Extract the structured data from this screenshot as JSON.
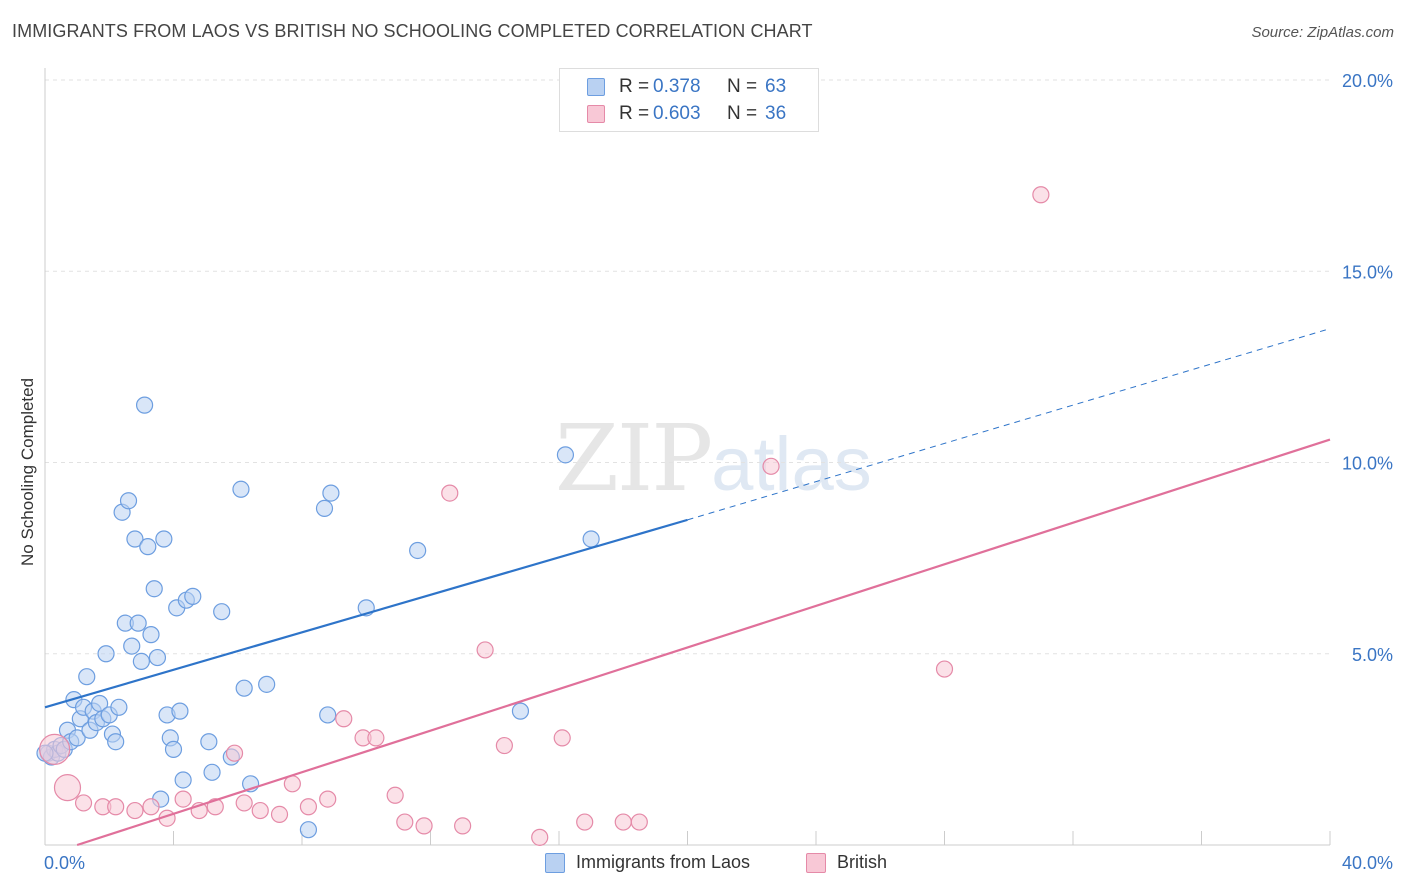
{
  "title": "IMMIGRANTS FROM LAOS VS BRITISH NO SCHOOLING COMPLETED CORRELATION CHART",
  "source": "Source: ZipAtlas.com",
  "watermark": {
    "zip": "ZIP",
    "atlas": "atlas"
  },
  "legend_top": {
    "rows": [
      {
        "r_label": "R =",
        "r_value": "0.378",
        "n_label": "N =",
        "n_value": "63"
      },
      {
        "r_label": "R =",
        "r_value": "0.603",
        "n_label": "N =",
        "n_value": "36"
      }
    ]
  },
  "legend_bottom": [
    "Immigrants from Laos",
    "British"
  ],
  "colors": {
    "laos_fill": "#b9d1f2",
    "laos_stroke": "#6d9ee0",
    "laos_line": "#2e74c9",
    "british_fill": "#f8c8d6",
    "british_stroke": "#e58aa8",
    "british_line": "#e0709a",
    "grid": "#e2e2e2",
    "tick_text": "#3a75c4"
  },
  "chart_data": {
    "type": "scatter",
    "title": "IMMIGRANTS FROM LAOS VS BRITISH NO SCHOOLING COMPLETED CORRELATION CHART",
    "xlabel": "",
    "ylabel": "No Schooling Completed",
    "xlim": [
      0,
      40
    ],
    "ylim": [
      0,
      20
    ],
    "x_tick_labels": [
      "0.0%",
      "40.0%"
    ],
    "y_ticks": [
      5,
      10,
      15,
      20
    ],
    "y_tick_labels": [
      "5.0%",
      "10.0%",
      "15.0%",
      "20.0%"
    ],
    "grid": true,
    "legend_placement": "top-center",
    "series": [
      {
        "name": "Immigrants from Laos",
        "r": 0.378,
        "n": 63,
        "trend": {
          "x0": 0,
          "y0": 3.6,
          "x1": 20,
          "y1": 8.5,
          "dashed_to_x": 40,
          "dashed_to_y": 13.5
        },
        "points": [
          [
            0.1,
            2.4
          ],
          [
            0.2,
            2.3
          ],
          [
            0.3,
            2.5
          ],
          [
            0.4,
            2.4
          ],
          [
            0.5,
            2.6
          ],
          [
            0.6,
            2.5
          ],
          [
            0.7,
            3.0
          ],
          [
            0.8,
            2.7
          ],
          [
            0.9,
            3.8
          ],
          [
            1.0,
            2.8
          ],
          [
            1.1,
            3.3
          ],
          [
            1.2,
            3.6
          ],
          [
            1.3,
            4.4
          ],
          [
            1.4,
            3.0
          ],
          [
            1.5,
            3.5
          ],
          [
            1.6,
            3.2
          ],
          [
            1.7,
            3.7
          ],
          [
            1.8,
            3.3
          ],
          [
            1.9,
            5.0
          ],
          [
            2.0,
            3.4
          ],
          [
            2.1,
            2.9
          ],
          [
            2.2,
            2.7
          ],
          [
            2.3,
            3.6
          ],
          [
            2.4,
            8.7
          ],
          [
            2.5,
            5.8
          ],
          [
            2.6,
            9.0
          ],
          [
            2.7,
            5.2
          ],
          [
            2.8,
            8.0
          ],
          [
            2.9,
            5.8
          ],
          [
            3.0,
            4.8
          ],
          [
            3.1,
            11.5
          ],
          [
            3.2,
            7.8
          ],
          [
            3.3,
            5.5
          ],
          [
            3.4,
            6.7
          ],
          [
            3.5,
            4.9
          ],
          [
            3.6,
            1.2
          ],
          [
            3.7,
            8.0
          ],
          [
            3.8,
            3.4
          ],
          [
            3.9,
            2.8
          ],
          [
            4.0,
            2.5
          ],
          [
            4.1,
            6.2
          ],
          [
            4.2,
            3.5
          ],
          [
            4.3,
            1.7
          ],
          [
            4.4,
            6.4
          ],
          [
            4.6,
            6.5
          ],
          [
            5.1,
            2.7
          ],
          [
            5.2,
            1.9
          ],
          [
            5.5,
            6.1
          ],
          [
            5.8,
            2.3
          ],
          [
            6.1,
            9.3
          ],
          [
            6.2,
            4.1
          ],
          [
            6.4,
            1.6
          ],
          [
            6.9,
            4.2
          ],
          [
            8.2,
            0.4
          ],
          [
            8.7,
            8.8
          ],
          [
            8.8,
            3.4
          ],
          [
            8.9,
            9.2
          ],
          [
            10.0,
            6.2
          ],
          [
            11.6,
            7.7
          ],
          [
            14.8,
            3.5
          ],
          [
            16.2,
            10.2
          ],
          [
            17.0,
            8.0
          ],
          [
            0.0,
            2.4
          ]
        ]
      },
      {
        "name": "British",
        "r": 0.603,
        "n": 36,
        "trend": {
          "x0": 1.0,
          "y0": 0.0,
          "x1": 40,
          "y1": 10.6
        },
        "points": [
          [
            0.3,
            2.5
          ],
          [
            0.7,
            1.5
          ],
          [
            1.2,
            1.1
          ],
          [
            1.8,
            1.0
          ],
          [
            2.2,
            1.0
          ],
          [
            2.8,
            0.9
          ],
          [
            3.3,
            1.0
          ],
          [
            3.8,
            0.7
          ],
          [
            4.3,
            1.2
          ],
          [
            4.8,
            0.9
          ],
          [
            5.3,
            1.0
          ],
          [
            5.9,
            2.4
          ],
          [
            6.2,
            1.1
          ],
          [
            6.7,
            0.9
          ],
          [
            7.3,
            0.8
          ],
          [
            7.7,
            1.6
          ],
          [
            8.2,
            1.0
          ],
          [
            8.8,
            1.2
          ],
          [
            9.3,
            3.3
          ],
          [
            9.9,
            2.8
          ],
          [
            10.3,
            2.8
          ],
          [
            10.9,
            1.3
          ],
          [
            11.2,
            0.6
          ],
          [
            11.8,
            0.5
          ],
          [
            12.6,
            9.2
          ],
          [
            13.0,
            0.5
          ],
          [
            13.7,
            5.1
          ],
          [
            14.3,
            2.6
          ],
          [
            15.4,
            0.2
          ],
          [
            16.1,
            2.8
          ],
          [
            16.8,
            0.6
          ],
          [
            18.0,
            0.6
          ],
          [
            18.5,
            0.6
          ],
          [
            22.6,
            9.9
          ],
          [
            28.0,
            4.6
          ],
          [
            31.0,
            17.0
          ]
        ]
      }
    ]
  }
}
